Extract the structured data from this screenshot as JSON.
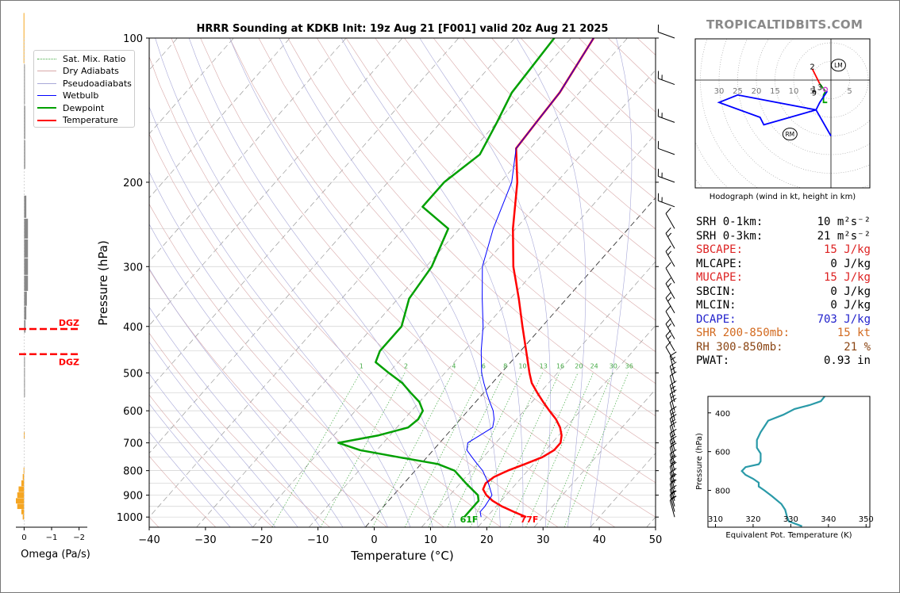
{
  "title": "HRRR Sounding at KDKB Init: 19z Aug 21 [F001] valid 20z Aug 21 2025",
  "site_label": "TROPICALTIDBITS.COM",
  "skewt": {
    "xlabel": "Temperature (°C)",
    "ylabel": "Pressure (hPa)",
    "x_ticks": [
      -40,
      -30,
      -20,
      -10,
      0,
      10,
      20,
      30,
      40,
      50
    ],
    "x_tick_labels": [
      "−40",
      "−30",
      "−20",
      "−10",
      "0",
      "10",
      "20",
      "30",
      "40",
      "50"
    ],
    "p_ticks": [
      100,
      200,
      300,
      400,
      500,
      600,
      700,
      800,
      900,
      1000
    ],
    "p_tick_labels": [
      "100",
      "200",
      "300",
      "400",
      "500",
      "600",
      "700",
      "800",
      "900",
      "1000"
    ],
    "mixing_ratio_values": [
      1,
      2,
      4,
      6,
      8,
      10,
      13,
      16,
      20,
      24,
      30,
      36
    ],
    "mixing_ratio_labels": [
      "1",
      "2",
      "4",
      "6",
      "8",
      "10",
      "13",
      "16",
      "20",
      "24",
      "30",
      "36"
    ],
    "surface_dewpoint_label": "61F",
    "surface_temp_label": "77F",
    "colors": {
      "temperature": "#ff0000",
      "dewpoint": "#00a000",
      "wetbulb": "#0000ff",
      "dry_adiabat": "#d8a8a8",
      "moist_adiabat": "#a8a8d8",
      "mixing_ratio": "#44aa44",
      "isotherm": "#999999"
    }
  },
  "legend": {
    "items": [
      {
        "label": "Sat. Mix. Ratio",
        "color": "#44aa44",
        "style": "dotted"
      },
      {
        "label": "Dry Adiabats",
        "color": "#d8a8a8",
        "style": "solid"
      },
      {
        "label": "Pseudoadiabats",
        "color": "#a8a8d8",
        "style": "solid"
      },
      {
        "label": "Wetbulb",
        "color": "#0000ff",
        "style": "solid"
      },
      {
        "label": "Dewpoint",
        "color": "#00a000",
        "style": "thick"
      },
      {
        "label": "Temperature",
        "color": "#ff0000",
        "style": "thick"
      }
    ]
  },
  "omega": {
    "xlabel": "Omega (Pa/s)",
    "x_ticks": [
      0,
      -1,
      -2
    ],
    "x_tick_labels": [
      "0",
      "−1",
      "−2"
    ],
    "dgz_label": "DGZ",
    "dgz_top_hPa": 405,
    "dgz_bottom_hPa": 457
  },
  "hodograph": {
    "caption": "Hodograph (wind in kt, height in km)",
    "ring_labels": [
      "30",
      "25",
      "20",
      "15",
      "10",
      "5",
      "5"
    ],
    "height_labels": [
      "2",
      "1",
      "3",
      "9"
    ],
    "lm_label": "LM",
    "rm_label": "RM"
  },
  "params": [
    {
      "label": "SRH 0-1km:",
      "value": "10",
      "unit": "m²s⁻²",
      "color": "#000000"
    },
    {
      "label": "SRH 0-3km:",
      "value": "21",
      "unit": "m²s⁻²",
      "color": "#000000"
    },
    {
      "label": "SBCAPE:",
      "value": "15 J/kg",
      "unit": "",
      "color": "#dd2222"
    },
    {
      "label": "MLCAPE:",
      "value": "0 J/kg",
      "unit": "",
      "color": "#000000"
    },
    {
      "label": "MUCAPE:",
      "value": "15 J/kg",
      "unit": "",
      "color": "#dd2222"
    },
    {
      "label": "SBCIN:",
      "value": "0 J/kg",
      "unit": "",
      "color": "#000000"
    },
    {
      "label": "MLCIN:",
      "value": "0 J/kg",
      "unit": "",
      "color": "#000000"
    },
    {
      "label": "DCAPE:",
      "value": "703 J/kg",
      "unit": "",
      "color": "#2222cc"
    },
    {
      "label": "SHR 200-850mb:",
      "value": "15 kt",
      "unit": "",
      "color": "#d2691e"
    },
    {
      "label": "RH 300-850mb:",
      "value": "21 %",
      "unit": "",
      "color": "#8b4513"
    },
    {
      "label": "PWAT:",
      "value": "0.93 in",
      "unit": "",
      "color": "#000000"
    }
  ],
  "theta_e": {
    "xlabel": "Equivalent Pot. Temperature (K)",
    "ylabel": "Pressure (hPa)",
    "x_ticks": [
      310,
      320,
      330,
      340,
      350
    ],
    "x_tick_labels": [
      "310",
      "320",
      "330",
      "340",
      "350"
    ],
    "y_ticks": [
      400,
      600,
      800
    ],
    "y_tick_labels": [
      "400",
      "600",
      "800"
    ],
    "color": "#2a9aa8"
  },
  "chart_data": [
    {
      "type": "line",
      "title": "HRRR Sounding at KDKB Init: 19z Aug 21 [F001] valid 20z Aug 21 2025",
      "xlabel": "Temperature (°C)",
      "ylabel": "Pressure (hPa)",
      "xlim": [
        -40,
        50
      ],
      "ylim": [
        1050,
        100
      ],
      "log_y": true,
      "grid": true,
      "legend_position": "top-left",
      "series": [
        {
          "name": "Temperature",
          "points": [
            [
              1000,
              27
            ],
            [
              975,
              24
            ],
            [
              950,
              21
            ],
            [
              925,
              18.5
            ],
            [
              900,
              16.5
            ],
            [
              875,
              15
            ],
            [
              850,
              14.5
            ],
            [
              825,
              15
            ],
            [
              800,
              16.5
            ],
            [
              775,
              18.5
            ],
            [
              750,
              20.5
            ],
            [
              725,
              21.5
            ],
            [
              700,
              21.5
            ],
            [
              675,
              20.5
            ],
            [
              650,
              19
            ],
            [
              625,
              17
            ],
            [
              600,
              14.5
            ],
            [
              575,
              12
            ],
            [
              550,
              9.5
            ],
            [
              525,
              7
            ],
            [
              500,
              5
            ],
            [
              450,
              1
            ],
            [
              400,
              -3.5
            ],
            [
              350,
              -8.5
            ],
            [
              300,
              -14.5
            ],
            [
              250,
              -20.5
            ],
            [
              200,
              -27
            ],
            [
              170,
              -32.5
            ],
            [
              150,
              -33
            ],
            [
              130,
              -33.5
            ],
            [
              100,
              -36
            ]
          ]
        },
        {
          "name": "Dewpoint",
          "points": [
            [
              1000,
              16
            ],
            [
              975,
              16
            ],
            [
              950,
              16
            ],
            [
              925,
              16
            ],
            [
              900,
              15
            ],
            [
              850,
              11
            ],
            [
              800,
              7
            ],
            [
              775,
              3
            ],
            [
              750,
              -5
            ],
            [
              725,
              -13
            ],
            [
              700,
              -18
            ],
            [
              675,
              -12
            ],
            [
              650,
              -8
            ],
            [
              625,
              -7.5
            ],
            [
              600,
              -8
            ],
            [
              575,
              -10
            ],
            [
              550,
              -13
            ],
            [
              525,
              -16
            ],
            [
              500,
              -20
            ],
            [
              475,
              -24
            ],
            [
              450,
              -25
            ],
            [
              400,
              -25
            ],
            [
              350,
              -28
            ],
            [
              300,
              -29
            ],
            [
              250,
              -32
            ],
            [
              225,
              -40
            ],
            [
              200,
              -40
            ],
            [
              175,
              -38
            ],
            [
              150,
              -40
            ],
            [
              130,
              -42
            ],
            [
              100,
              -43
            ]
          ]
        },
        {
          "name": "Wetbulb",
          "points": [
            [
              1000,
              19
            ],
            [
              975,
              18
            ],
            [
              950,
              18
            ],
            [
              900,
              17.5
            ],
            [
              850,
              15
            ],
            [
              800,
              12
            ],
            [
              775,
              10
            ],
            [
              750,
              8
            ],
            [
              725,
              6
            ],
            [
              700,
              5
            ],
            [
              675,
              6
            ],
            [
              650,
              7
            ],
            [
              625,
              6
            ],
            [
              600,
              4.5
            ],
            [
              575,
              2.5
            ],
            [
              550,
              0.5
            ],
            [
              525,
              -1.5
            ],
            [
              500,
              -3.5
            ],
            [
              450,
              -7
            ],
            [
              400,
              -10.5
            ],
            [
              350,
              -15
            ],
            [
              300,
              -20
            ],
            [
              250,
              -24
            ],
            [
              200,
              -28
            ],
            [
              170,
              -32.5
            ],
            [
              150,
              -33
            ],
            [
              130,
              -33.5
            ],
            [
              100,
              -36
            ]
          ]
        }
      ]
    },
    {
      "type": "bar",
      "title": "",
      "xlabel": "Omega (Pa/s)",
      "xlim": [
        0.3,
        -2.3
      ],
      "ylim": [
        1050,
        100
      ],
      "orientation": "horizontal",
      "series": [
        {
          "name": "",
          "points": [
            [
              1000,
              0.05
            ],
            [
              975,
              0.1
            ],
            [
              950,
              0.25
            ],
            [
              925,
              0.3
            ],
            [
              900,
              0.25
            ],
            [
              875,
              0.2
            ],
            [
              850,
              0.1
            ],
            [
              825,
              0.05
            ],
            [
              800,
              0.02
            ],
            [
              675,
              0.01
            ],
            [
              550,
              -0.01
            ],
            [
              525,
              -0.01
            ],
            [
              500,
              -0.02
            ],
            [
              475,
              -0.02
            ],
            [
              400,
              -0.05
            ],
            [
              375,
              -0.08
            ],
            [
              350,
              -0.1
            ],
            [
              325,
              -0.14
            ],
            [
              300,
              -0.14
            ],
            [
              275,
              -0.14
            ],
            [
              250,
              -0.14
            ],
            [
              225,
              -0.08
            ],
            [
              175,
              -0.04
            ],
            [
              150,
              -0.04
            ],
            [
              125,
              -0.02
            ],
            [
              100,
              0.02
            ]
          ]
        }
      ]
    },
    {
      "type": "line",
      "title": "Hodograph (wind in kt, height in km)",
      "xlabel": "",
      "ylabel": "",
      "xlim": [
        -35,
        10
      ],
      "ylim": [
        -20,
        12
      ],
      "series": [
        {
          "name": "0-1 km",
          "points": [
            [
              -5,
              3
            ],
            [
              -3,
              -1
            ]
          ]
        },
        {
          "name": "1-3 km",
          "points": [
            [
              -3,
              -1
            ],
            [
              -1.5,
              -3
            ],
            [
              -2,
              -4
            ],
            [
              -2,
              -6
            ],
            [
              -1,
              -6
            ]
          ]
        },
        {
          "name": "3-9 km",
          "points": [
            [
              -1,
              -3
            ],
            [
              -3,
              -6
            ],
            [
              -4,
              -8
            ],
            [
              -18,
              -12
            ],
            [
              -19,
              -10
            ],
            [
              -30,
              -6
            ],
            [
              -25,
              -4
            ],
            [
              -4,
              -8
            ],
            [
              0,
              -15
            ]
          ]
        },
        {
          "name": "LM",
          "points": [
            [
              2,
              4
            ]
          ]
        },
        {
          "name": "RM",
          "points": [
            [
              -11,
              -14.5
            ]
          ]
        }
      ]
    },
    {
      "type": "line",
      "title": "",
      "xlabel": "Equivalent Pot. Temperature (K)",
      "ylabel": "Pressure (hPa)",
      "xlim": [
        308,
        351
      ],
      "ylim": [
        990,
        315
      ],
      "series": [
        {
          "name": "",
          "points": [
            [
              315,
              339
            ],
            [
              340,
              338
            ],
            [
              360,
              335
            ],
            [
              380,
              331
            ],
            [
              410,
              328
            ],
            [
              440,
              324
            ],
            [
              470,
              323
            ],
            [
              500,
              322
            ],
            [
              540,
              321
            ],
            [
              580,
              321
            ],
            [
              610,
              322
            ],
            [
              650,
              322
            ],
            [
              665,
              321.5
            ],
            [
              680,
              318
            ],
            [
              700,
              317
            ],
            [
              720,
              318
            ],
            [
              740,
              320
            ],
            [
              760,
              321.5
            ],
            [
              780,
              321.5
            ],
            [
              800,
              323
            ],
            [
              830,
              325
            ],
            [
              870,
              327.5
            ],
            [
              900,
              328.5
            ],
            [
              935,
              329
            ],
            [
              960,
              329.5
            ],
            [
              985,
              333
            ]
          ]
        }
      ]
    }
  ]
}
